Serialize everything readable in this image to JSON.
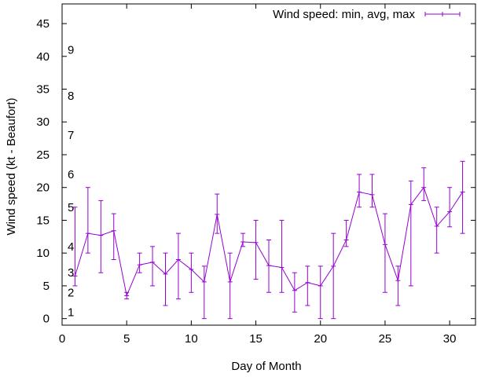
{
  "chart_data": {
    "type": "line",
    "title": "",
    "xlabel": "Day of Month",
    "ylabel": "Wind speed (kt - Beaufort)",
    "xlim": [
      0,
      32
    ],
    "ylim": [
      -1,
      48
    ],
    "x_ticks": [
      "0",
      "5",
      "10",
      "15",
      "20",
      "25",
      "30"
    ],
    "y_ticks": [
      "0",
      "5",
      "10",
      "15",
      "20",
      "25",
      "30",
      "35",
      "40",
      "45"
    ],
    "beaufort_labels": [
      {
        "label": "1",
        "y": 1
      },
      {
        "label": "2",
        "y": 4
      },
      {
        "label": "3",
        "y": 7
      },
      {
        "label": "4",
        "y": 11
      },
      {
        "label": "5",
        "y": 17
      },
      {
        "label": "6",
        "y": 22
      },
      {
        "label": "7",
        "y": 28
      },
      {
        "label": "8",
        "y": 34
      },
      {
        "label": "9",
        "y": 41
      }
    ],
    "grid": false,
    "legend_position": "top-right",
    "series": [
      {
        "name": "Wind speed: min, avg, max",
        "color": "#9400d3",
        "x": [
          1,
          2,
          3,
          4,
          5,
          6,
          7,
          8,
          9,
          10,
          11,
          12,
          13,
          14,
          15,
          16,
          17,
          18,
          19,
          20,
          21,
          22,
          23,
          24,
          25,
          26,
          27,
          28,
          29,
          30,
          31
        ],
        "avg": [
          6.5,
          13,
          12.7,
          13.4,
          3.5,
          8.2,
          8.6,
          6.8,
          9,
          7.5,
          5.6,
          15.9,
          5.6,
          11.7,
          11.6,
          8.1,
          7.8,
          4.3,
          5.5,
          5,
          8,
          12,
          19.3,
          18.9,
          11.3,
          5.8,
          17.4,
          20,
          14.1,
          16.3,
          19.3
        ],
        "min": [
          5,
          10,
          7,
          9,
          3,
          7,
          5,
          2,
          3,
          4,
          0,
          13,
          0,
          11,
          6,
          4,
          4,
          1,
          2,
          0,
          0,
          11,
          17,
          17,
          4,
          2,
          5,
          18,
          10,
          14,
          13
        ],
        "max": [
          17,
          20,
          18,
          16,
          4,
          10,
          11,
          10,
          13,
          10,
          8,
          19,
          10,
          13,
          15,
          12,
          15,
          7,
          8,
          8,
          13,
          15,
          22,
          22,
          16,
          8,
          21,
          23,
          17,
          20,
          24
        ]
      }
    ]
  }
}
